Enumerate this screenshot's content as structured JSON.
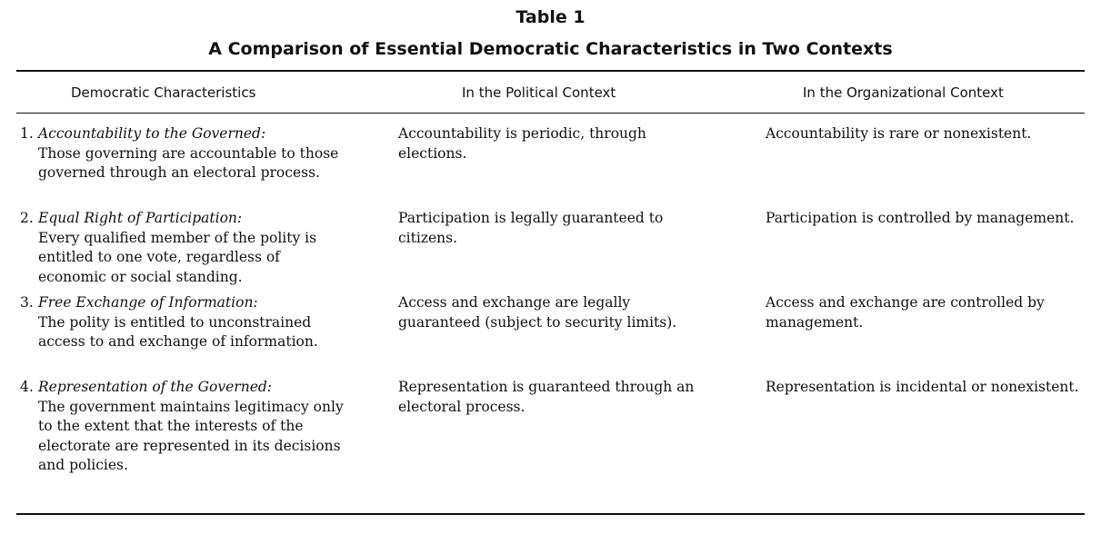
{
  "table": {
    "title": "Table 1",
    "subtitle": "A Comparison of Essential Democratic Characteristics in Two Contexts",
    "headers": [
      "Democratic Characteristics",
      "In the Political Context",
      "In the Organizational Context"
    ],
    "rows": [
      {
        "number": "1.",
        "name": "Accountability to the Governed:",
        "description": "Those governing are accountable to those governed through an electoral process.",
        "political": "Accountability is periodic, through elections.",
        "organizational": "Accountability is rare or nonexistent."
      },
      {
        "number": "2.",
        "name": "Equal Right of Participation:",
        "description": "Every qualified member of the polity is entitled to one vote, regardless of economic or social standing.",
        "political": "Participation is legally guaranteed to citizens.",
        "organizational": "Participation is controlled by management."
      },
      {
        "number": "3.",
        "name": "Free Exchange of Information:",
        "description": "The polity is entitled to unconstrained access to and exchange of information.",
        "political": "Access and exchange are legally guaranteed (subject to security limits).",
        "organizational": "Access and exchange are controlled by management."
      },
      {
        "number": "4.",
        "name": "Representation of the Governed:",
        "description": "The government maintains legitimacy only to the extent that the interests of the electorate are represented in its decisions and policies.",
        "political": "Representation is guaranteed through an electoral process.",
        "organizational": "Representation is incidental or nonexistent."
      }
    ]
  }
}
